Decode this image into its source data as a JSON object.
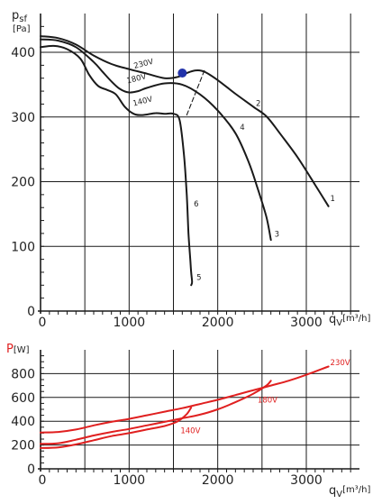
{
  "colors": {
    "pressure_curve": "#1a1a1a",
    "power_curve": "#e02020",
    "grid": "#1a1a1a",
    "operating_point": "#2233aa",
    "power_axis_label": "#e02020"
  },
  "chart_data": [
    {
      "type": "line",
      "grid": true,
      "ylabel_main": "p",
      "ylabel_sub": "sf",
      "yunit": "[Pa]",
      "xlabel_main": "q",
      "xlabel_sub": "V",
      "xunit": "[m³/h]",
      "xlim": [
        0,
        3600
      ],
      "ylim": [
        0,
        460
      ],
      "x_ticks": [
        {
          "v": 0,
          "label": "0"
        },
        {
          "v": 1000,
          "label": "1000"
        },
        {
          "v": 2000,
          "label": "2000"
        },
        {
          "v": 3000,
          "label": "3000"
        }
      ],
      "y_ticks": [
        {
          "v": 0,
          "label": "0"
        },
        {
          "v": 100,
          "label": "100"
        },
        {
          "v": 200,
          "label": "200"
        },
        {
          "v": 300,
          "label": "300"
        },
        {
          "v": 400,
          "label": "400"
        }
      ],
      "series": [
        {
          "name": "230V",
          "x": [
            0,
            200,
            400,
            600,
            800,
            1000,
            1200,
            1400,
            1550,
            1650,
            1750,
            1850,
            2000,
            2200,
            2400,
            2550,
            2700,
            2900,
            3100,
            3250
          ],
          "y": [
            425,
            422,
            412,
            395,
            382,
            374,
            367,
            360,
            362,
            368,
            372,
            370,
            357,
            336,
            316,
            301,
            275,
            238,
            195,
            162
          ]
        },
        {
          "name": "180V",
          "x": [
            0,
            200,
            400,
            600,
            700,
            800,
            900,
            1000,
            1100,
            1200,
            1400,
            1600,
            1800,
            2000,
            2200,
            2350,
            2450,
            2550,
            2600
          ],
          "y": [
            420,
            418,
            408,
            385,
            370,
            355,
            343,
            338,
            340,
            345,
            352,
            350,
            335,
            310,
            275,
            230,
            190,
            145,
            110
          ]
        },
        {
          "name": "140V",
          "x": [
            0,
            150,
            300,
            450,
            550,
            650,
            750,
            850,
            950,
            1050,
            1150,
            1300,
            1400,
            1500,
            1570,
            1620,
            1650,
            1670,
            1690,
            1700,
            1710,
            1700
          ],
          "y": [
            408,
            410,
            405,
            390,
            365,
            348,
            342,
            335,
            316,
            305,
            303,
            306,
            305,
            305,
            295,
            240,
            180,
            120,
            80,
            60,
            45,
            40
          ]
        },
        {
          "name": "dashed",
          "dashed": true,
          "x": [
            1650,
            1850
          ],
          "y": [
            303,
            372
          ]
        }
      ],
      "operating_point": {
        "x": 1600,
        "y": 368
      },
      "curve_labels": [
        {
          "text": "230V",
          "x": 1060,
          "y": 375,
          "rotate": -14
        },
        {
          "text": "180V",
          "x": 980,
          "y": 352,
          "rotate": -14
        },
        {
          "text": "140V",
          "x": 1050,
          "y": 317,
          "rotate": -14
        },
        {
          "text": "1",
          "x": 3270,
          "y": 170
        },
        {
          "text": "2",
          "x": 2430,
          "y": 317
        },
        {
          "text": "3",
          "x": 2640,
          "y": 115
        },
        {
          "text": "4",
          "x": 2250,
          "y": 280
        },
        {
          "text": "5",
          "x": 1760,
          "y": 48
        },
        {
          "text": "6",
          "x": 1730,
          "y": 162
        }
      ]
    },
    {
      "type": "line",
      "grid": true,
      "ylabel_main": "P",
      "yunit": "[W]",
      "xlabel_main": "q",
      "xlabel_sub": "V",
      "xunit": "[m³/h]",
      "xlim": [
        0,
        3600
      ],
      "ylim": [
        0,
        1000
      ],
      "x_ticks": [
        {
          "v": 0,
          "label": "0"
        },
        {
          "v": 1000,
          "label": "1000"
        },
        {
          "v": 2000,
          "label": "2000"
        },
        {
          "v": 3000,
          "label": "3000"
        }
      ],
      "y_ticks": [
        {
          "v": 0,
          "label": "0"
        },
        {
          "v": 200,
          "label": "200"
        },
        {
          "v": 400,
          "label": "400"
        },
        {
          "v": 600,
          "label": "600"
        },
        {
          "v": 800,
          "label": "800"
        }
      ],
      "series": [
        {
          "name": "230V",
          "x": [
            0,
            200,
            400,
            600,
            800,
            1000,
            1200,
            1400,
            1600,
            1800,
            2000,
            2200,
            2400,
            2600,
            2800,
            3000,
            3250
          ],
          "y": [
            305,
            310,
            330,
            365,
            395,
            420,
            450,
            480,
            510,
            545,
            580,
            620,
            660,
            700,
            740,
            790,
            860
          ]
        },
        {
          "name": "180V",
          "x": [
            0,
            200,
            400,
            600,
            800,
            1000,
            1200,
            1400,
            1600,
            1800,
            2000,
            2200,
            2400,
            2550,
            2600
          ],
          "y": [
            210,
            215,
            245,
            280,
            310,
            335,
            365,
            395,
            425,
            455,
            500,
            560,
            630,
            700,
            740
          ]
        },
        {
          "name": "140V",
          "x": [
            0,
            200,
            400,
            600,
            800,
            1000,
            1200,
            1400,
            1550,
            1650,
            1700
          ],
          "y": [
            175,
            180,
            205,
            240,
            275,
            300,
            330,
            360,
            400,
            460,
            515
          ]
        }
      ],
      "curve_labels": [
        {
          "text": "230V",
          "x": 3270,
          "y": 870
        },
        {
          "text": "180V",
          "x": 2450,
          "y": 555
        },
        {
          "text": "140V",
          "x": 1580,
          "y": 300
        }
      ]
    }
  ]
}
